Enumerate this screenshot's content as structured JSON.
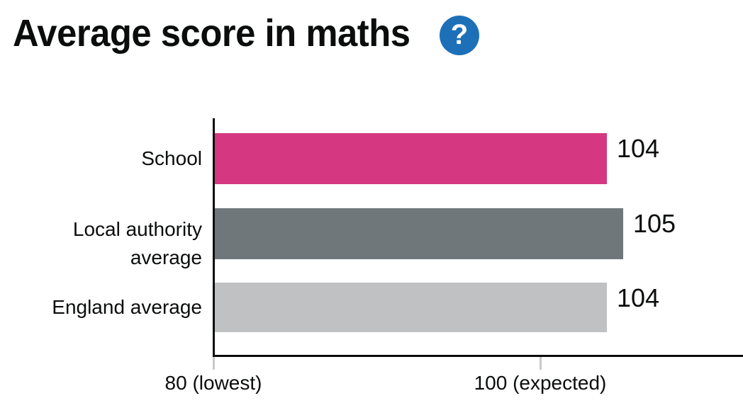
{
  "header": {
    "title": "Average score in maths",
    "help_icon_glyph": "?"
  },
  "chart_data": {
    "type": "bar",
    "orientation": "horizontal",
    "title": "Average score in maths",
    "categories": [
      "School",
      "Local authority average",
      "England average"
    ],
    "values": [
      104,
      105,
      104
    ],
    "value_labels": [
      "104",
      "105",
      "104"
    ],
    "bar_colors": [
      "#d53880",
      "#6f777b",
      "#bfc1c3"
    ],
    "x_ticks": [
      {
        "value": 80,
        "label": "80 (lowest)"
      },
      {
        "value": 100,
        "label": "100 (expected)"
      }
    ],
    "xlim": [
      80,
      112
    ],
    "grid": false,
    "legend": false
  },
  "colors": {
    "title_text": "#0b0c0c",
    "label_text": "#0b0c0c",
    "help_icon_bg": "#1d70b8",
    "help_icon_glyph": "#ffffff",
    "axis_line": "#0b0c0c",
    "tick_mark": "#c9c9c9",
    "background": "#ffffff"
  }
}
